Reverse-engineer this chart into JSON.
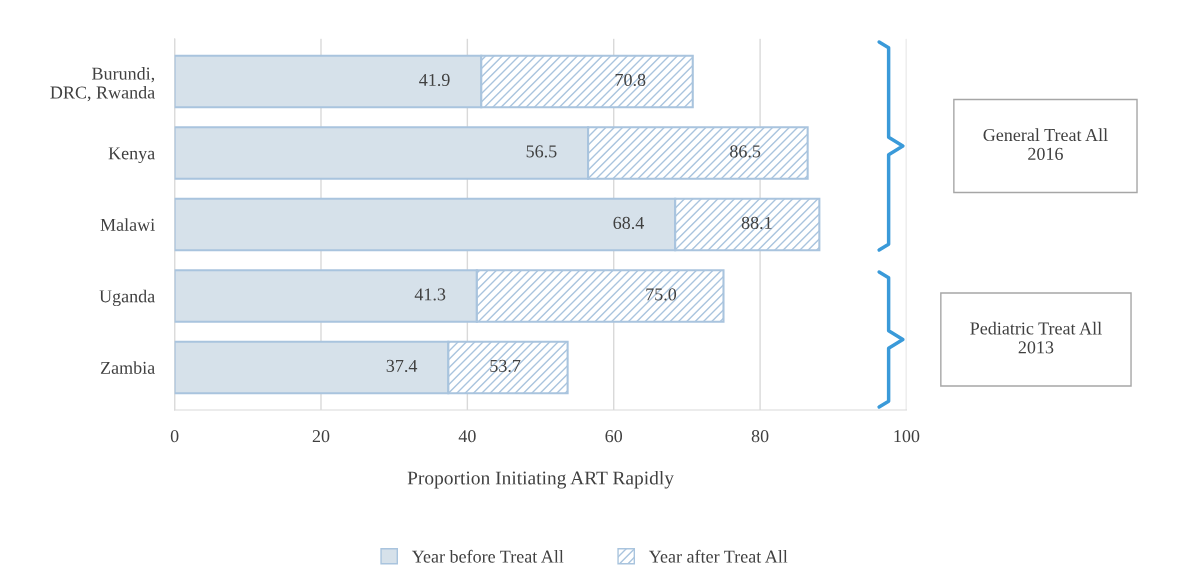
{
  "chart_data": {
    "type": "bar",
    "orientation": "horizontal",
    "stacked": true,
    "totals": [
      "70.8",
      "86.5",
      "88.1",
      "75.0",
      "53.7"
    ],
    "categories": [
      "Burundi,\nDRC, Rwanda",
      "Kenya",
      "Malawi",
      "Uganda",
      "Zambia"
    ],
    "series": [
      {
        "name": "Year before Treat All",
        "color": "#d6e1ea",
        "values": [
          41.9,
          56.5,
          68.4,
          41.3,
          37.4
        ],
        "value_labels": [
          "41.9",
          "56.5",
          "68.4",
          "41.3",
          "37.4"
        ]
      },
      {
        "name": "Year after Treat All",
        "color": "#a9c4de",
        "values": [
          28.9,
          30.0,
          19.7,
          33.7,
          16.3
        ]
      }
    ],
    "xlabel": "Proportion Initiating ART Rapidly",
    "xlim": [
      0,
      100
    ],
    "xticks": [
      0,
      20,
      40,
      60,
      80,
      100
    ],
    "grid": "x",
    "legend": "bottom",
    "annotations": [
      "General Treat All\n2016",
      "Pediatric Treat All\n2013"
    ]
  }
}
